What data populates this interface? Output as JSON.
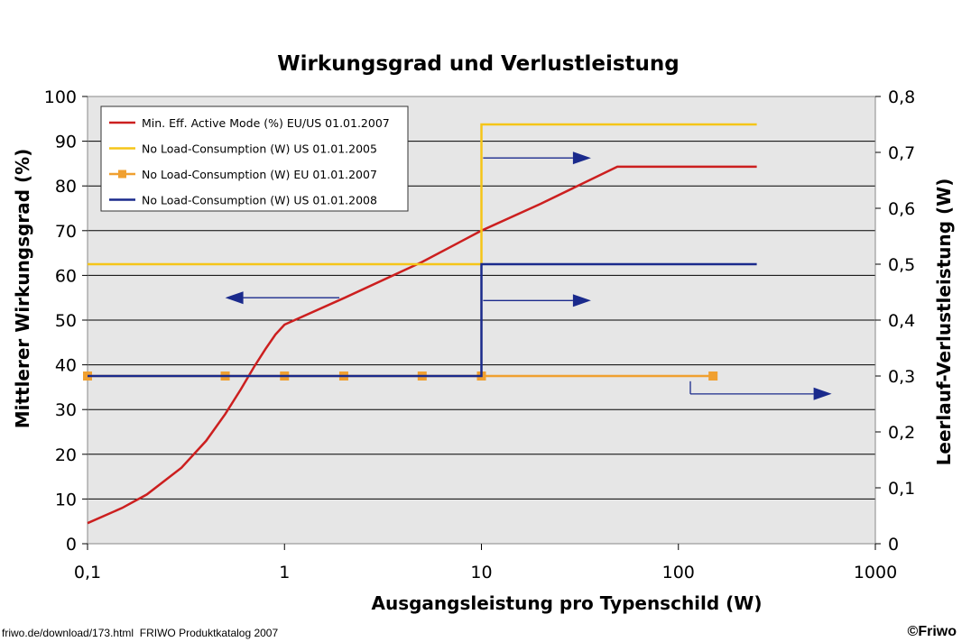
{
  "chart_data": {
    "type": "line",
    "title": "Wirkungsgrad und Verlustleistung",
    "xlabel": "Ausgangsleistung pro Typenschild (W)",
    "ylabel_left": "Mittlerer Wirkungsgrad (%)",
    "ylabel_right": "Leerlauf-Verlustleistung (W)",
    "x_scale": "log",
    "xlim": [
      0.1,
      1000
    ],
    "ylim_left": [
      0,
      100
    ],
    "ylim_right": [
      0,
      0.8
    ],
    "x_ticks": [
      0.1,
      1,
      10,
      100,
      1000
    ],
    "x_tick_labels": [
      "0,1",
      "1",
      "10",
      "100",
      "1000"
    ],
    "y_left_ticks": [
      0,
      10,
      20,
      30,
      40,
      50,
      60,
      70,
      80,
      90,
      100
    ],
    "y_left_tick_labels": [
      "0",
      "10",
      "20",
      "30",
      "40",
      "50",
      "60",
      "70",
      "80",
      "90",
      "100"
    ],
    "y_right_ticks": [
      0,
      0.1,
      0.2,
      0.3,
      0.4,
      0.5,
      0.6,
      0.7,
      0.8
    ],
    "y_right_tick_labels": [
      "0",
      "0,1",
      "0,2",
      "0,3",
      "0,4",
      "0,5",
      "0,6",
      "0,7",
      "0,8"
    ],
    "grid": "horizontal",
    "legend_position": "top-left",
    "series": [
      {
        "name": "Min. Eff. Active Mode (%) EU/US 01.01.2007",
        "axis": "left",
        "color": "#cc1f1f",
        "points": [
          [
            0.1,
            4.6
          ],
          [
            0.15,
            8.0
          ],
          [
            0.2,
            11.0
          ],
          [
            0.3,
            17.0
          ],
          [
            0.4,
            23.0
          ],
          [
            0.5,
            29.0
          ],
          [
            0.6,
            34.5
          ],
          [
            0.7,
            39.5
          ],
          [
            0.8,
            43.5
          ],
          [
            0.9,
            46.8
          ],
          [
            1,
            49.0
          ],
          [
            2,
            54.9
          ],
          [
            5,
            63.0
          ],
          [
            10,
            70.0
          ],
          [
            20,
            76.0
          ],
          [
            49,
            84.3
          ],
          [
            250,
            84.3
          ]
        ]
      },
      {
        "name": "No Load-Consumption (W) US 01.01.2005",
        "axis": "right",
        "color": "#f5c518",
        "points": [
          [
            0.1,
            0.5
          ],
          [
            10,
            0.5
          ],
          [
            10,
            0.75
          ],
          [
            250,
            0.75
          ]
        ]
      },
      {
        "name": "No Load-Consumption (W) EU 01.01.2007",
        "axis": "right",
        "color": "#f0a030",
        "marker": "square",
        "points": [
          [
            0.1,
            0.3
          ],
          [
            0.5,
            0.3
          ],
          [
            1,
            0.3
          ],
          [
            2,
            0.3
          ],
          [
            5,
            0.3
          ],
          [
            10,
            0.3
          ],
          [
            150,
            0.3
          ]
        ]
      },
      {
        "name": "No Load-Consumption (W) US 01.01.2008",
        "axis": "right",
        "color": "#1a2a8c",
        "points": [
          [
            0.1,
            0.3
          ],
          [
            10,
            0.3
          ],
          [
            10,
            0.5
          ],
          [
            250,
            0.5
          ]
        ]
      }
    ],
    "annotation_arrows": [
      {
        "axis": "left",
        "from": [
          1.9,
          55
        ],
        "to": [
          0.5,
          55
        ]
      },
      {
        "axis": "right",
        "from": [
          10.2,
          0.69
        ],
        "to": [
          36,
          0.69
        ]
      },
      {
        "axis": "right",
        "from": [
          10.2,
          0.435
        ],
        "to": [
          36,
          0.435
        ]
      },
      {
        "axis": "right",
        "from": [
          115,
          0.268
        ],
        "to": [
          600,
          0.268
        ]
      }
    ]
  },
  "footer": {
    "source": "friwo.de/download/173.html  FRIWO Produktkatalog 2007",
    "copyright": "©Friwo"
  }
}
